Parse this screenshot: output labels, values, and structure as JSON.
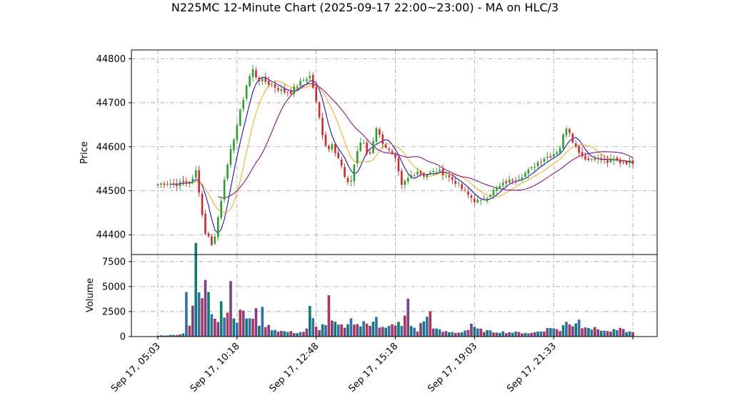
{
  "chart_data": {
    "type": "candlestick",
    "title": "N225MC 12-Minute Chart (2025-09-17 22:00~23:00) - MA on HLC/3",
    "price_panel": {
      "ylabel": "Price",
      "ylim": [
        44355,
        44820
      ],
      "yticks": [
        44400,
        44500,
        44600,
        44700,
        44800
      ],
      "grid": true
    },
    "volume_panel": {
      "ylabel": "Volume",
      "ylim": [
        0,
        8200
      ],
      "yticks": [
        0,
        2500,
        5000,
        7500
      ],
      "ytick_labels": [
        "0",
        "2500",
        "5000",
        "7500"
      ],
      "grid": true
    },
    "xticks": [
      {
        "index": 0,
        "label": "Sep 17, 05:03"
      },
      {
        "index": 25,
        "label": "Sep 17, 10:18"
      },
      {
        "index": 50,
        "label": "Sep 17, 12:48"
      },
      {
        "index": 75,
        "label": "Sep 17, 15:18"
      },
      {
        "index": 100,
        "label": "Sep 17, 19:03"
      },
      {
        "index": 125,
        "label": "Sep 17, 21:33"
      },
      {
        "index": 150,
        "label": ""
      }
    ],
    "x_count": 151,
    "colors": {
      "up": "#2ca02c",
      "down": "#d62728",
      "ma_short": "#0000cc",
      "ma_mid": "#f5a623",
      "ma_long": "#800080",
      "volume_palette": [
        "#0e7c6b",
        "#2e6fb5",
        "#b5334d",
        "#7b3f8c"
      ]
    },
    "ohlc_anchors": [
      [
        0,
        44515
      ],
      [
        3,
        44518
      ],
      [
        6,
        44515
      ],
      [
        9,
        44520
      ],
      [
        11,
        44525
      ],
      [
        12,
        44545
      ],
      [
        13,
        44500
      ],
      [
        14,
        44445
      ],
      [
        15,
        44405
      ],
      [
        16,
        44395
      ],
      [
        17,
        44380
      ],
      [
        18,
        44395
      ],
      [
        19,
        44440
      ],
      [
        20,
        44480
      ],
      [
        21,
        44530
      ],
      [
        22,
        44555
      ],
      [
        23,
        44590
      ],
      [
        24,
        44620
      ],
      [
        25,
        44650
      ],
      [
        26,
        44680
      ],
      [
        27,
        44710
      ],
      [
        28,
        44740
      ],
      [
        29,
        44760
      ],
      [
        30,
        44775
      ],
      [
        31,
        44760
      ],
      [
        32,
        44752
      ],
      [
        34,
        44748
      ],
      [
        36,
        44740
      ],
      [
        38,
        44732
      ],
      [
        40,
        44725
      ],
      [
        42,
        44725
      ],
      [
        44,
        44740
      ],
      [
        46,
        44752
      ],
      [
        48,
        44760
      ],
      [
        49,
        44735
      ],
      [
        50,
        44700
      ],
      [
        51,
        44665
      ],
      [
        52,
        44630
      ],
      [
        53,
        44605
      ],
      [
        54,
        44595
      ],
      [
        55,
        44610
      ],
      [
        56,
        44590
      ],
      [
        57,
        44575
      ],
      [
        58,
        44555
      ],
      [
        59,
        44530
      ],
      [
        60,
        44515
      ],
      [
        61,
        44525
      ],
      [
        62,
        44560
      ],
      [
        63,
        44590
      ],
      [
        64,
        44610
      ],
      [
        65,
        44605
      ],
      [
        66,
        44585
      ],
      [
        67,
        44585
      ],
      [
        68,
        44615
      ],
      [
        69,
        44645
      ],
      [
        70,
        44625
      ],
      [
        71,
        44610
      ],
      [
        72,
        44600
      ],
      [
        73,
        44590
      ],
      [
        74,
        44580
      ],
      [
        75,
        44570
      ],
      [
        76,
        44540
      ],
      [
        77,
        44510
      ],
      [
        78,
        44520
      ],
      [
        80,
        44535
      ],
      [
        82,
        44545
      ],
      [
        84,
        44535
      ],
      [
        86,
        44540
      ],
      [
        88,
        44545
      ],
      [
        90,
        44540
      ],
      [
        92,
        44530
      ],
      [
        94,
        44520
      ],
      [
        96,
        44505
      ],
      [
        98,
        44490
      ],
      [
        100,
        44478
      ],
      [
        102,
        44475
      ],
      [
        104,
        44488
      ],
      [
        106,
        44500
      ],
      [
        108,
        44510
      ],
      [
        110,
        44520
      ],
      [
        112,
        44525
      ],
      [
        114,
        44530
      ],
      [
        116,
        44540
      ],
      [
        118,
        44550
      ],
      [
        120,
        44565
      ],
      [
        122,
        44575
      ],
      [
        124,
        44580
      ],
      [
        126,
        44590
      ],
      [
        127,
        44600
      ],
      [
        128,
        44625
      ],
      [
        129,
        44645
      ],
      [
        130,
        44635
      ],
      [
        131,
        44615
      ],
      [
        132,
        44600
      ],
      [
        133,
        44590
      ],
      [
        134,
        44580
      ],
      [
        136,
        44570
      ],
      [
        138,
        44575
      ],
      [
        140,
        44570
      ],
      [
        142,
        44565
      ],
      [
        144,
        44570
      ],
      [
        146,
        44565
      ],
      [
        150,
        44565
      ]
    ],
    "volume_anchors": [
      [
        0,
        100
      ],
      [
        5,
        150
      ],
      [
        8,
        300
      ],
      [
        9,
        5500
      ],
      [
        10,
        1200
      ],
      [
        11,
        3200
      ],
      [
        12,
        7800
      ],
      [
        13,
        4300
      ],
      [
        14,
        3800
      ],
      [
        15,
        5000
      ],
      [
        16,
        4800
      ],
      [
        17,
        2500
      ],
      [
        18,
        2200
      ],
      [
        19,
        1800
      ],
      [
        20,
        4200
      ],
      [
        21,
        2000
      ],
      [
        22,
        2700
      ],
      [
        23,
        5300
      ],
      [
        24,
        2400
      ],
      [
        25,
        1600
      ],
      [
        26,
        2200
      ],
      [
        27,
        2800
      ],
      [
        28,
        1900
      ],
      [
        29,
        1700
      ],
      [
        30,
        1500
      ],
      [
        31,
        3300
      ],
      [
        32,
        1300
      ],
      [
        33,
        2400
      ],
      [
        34,
        1200
      ],
      [
        35,
        1000
      ],
      [
        36,
        800
      ],
      [
        38,
        600
      ],
      [
        40,
        500
      ],
      [
        42,
        450
      ],
      [
        44,
        400
      ],
      [
        46,
        500
      ],
      [
        47,
        700
      ],
      [
        48,
        2700
      ],
      [
        49,
        1600
      ],
      [
        50,
        900
      ],
      [
        51,
        800
      ],
      [
        52,
        1100
      ],
      [
        53,
        1300
      ],
      [
        54,
        3400
      ],
      [
        55,
        1500
      ],
      [
        56,
        1200
      ],
      [
        58,
        1000
      ],
      [
        60,
        1100
      ],
      [
        61,
        2400
      ],
      [
        62,
        1300
      ],
      [
        64,
        1100
      ],
      [
        65,
        1300
      ],
      [
        67,
        1200
      ],
      [
        69,
        2400
      ],
      [
        70,
        1000
      ],
      [
        72,
        800
      ],
      [
        74,
        1100
      ],
      [
        75,
        1000
      ],
      [
        76,
        1800
      ],
      [
        77,
        900
      ],
      [
        79,
        3300
      ],
      [
        80,
        1100
      ],
      [
        82,
        600
      ],
      [
        84,
        1700
      ],
      [
        85,
        1800
      ],
      [
        86,
        2500
      ],
      [
        87,
        1000
      ],
      [
        88,
        700
      ],
      [
        90,
        500
      ],
      [
        92,
        450
      ],
      [
        95,
        400
      ],
      [
        97,
        600
      ],
      [
        98,
        700
      ],
      [
        99,
        1300
      ],
      [
        100,
        800
      ],
      [
        102,
        650
      ],
      [
        105,
        500
      ],
      [
        110,
        450
      ],
      [
        115,
        400
      ],
      [
        118,
        350
      ],
      [
        122,
        650
      ],
      [
        125,
        950
      ],
      [
        127,
        500
      ],
      [
        129,
        1700
      ],
      [
        130,
        1400
      ],
      [
        131,
        1100
      ],
      [
        132,
        1500
      ],
      [
        133,
        1600
      ],
      [
        134,
        1000
      ],
      [
        135,
        1200
      ],
      [
        137,
        800
      ],
      [
        140,
        700
      ],
      [
        142,
        500
      ],
      [
        146,
        700
      ],
      [
        150,
        400
      ]
    ]
  }
}
